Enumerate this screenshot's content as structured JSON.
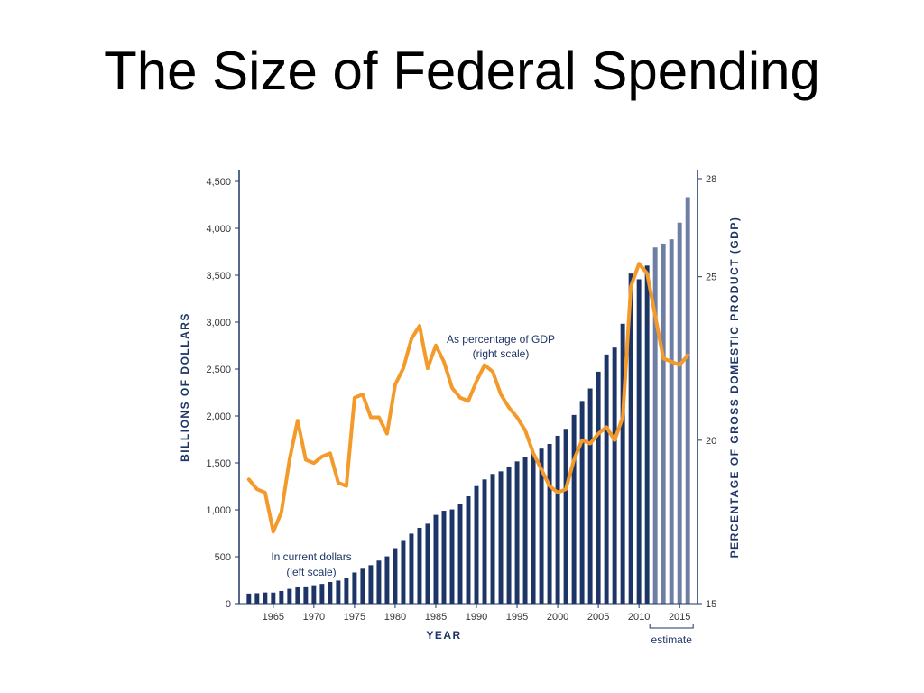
{
  "slide": {
    "title": "The Size of Federal Spending"
  },
  "colors": {
    "bar_actual": "#1d3566",
    "bar_estimate": "#6f7ea5",
    "line": "#f39a2b",
    "axis": "#1d3566"
  },
  "chart_data": {
    "type": "bar",
    "title": "",
    "xlabel": "YEAR",
    "ylabel": "BILLIONS OF DOLLARS",
    "ylabel_right": "PERCENTAGE OF GROSS DOMESTIC PRODUCT (GDP)",
    "ylim": [
      0,
      4500
    ],
    "ylim_right": [
      15,
      28
    ],
    "x_ticks": [
      1965,
      1970,
      1975,
      1980,
      1985,
      1990,
      1995,
      2000,
      2005,
      2010,
      2015
    ],
    "y_ticks_left": [
      "0",
      "500",
      "1,000",
      "1,500",
      "2,000",
      "2,500",
      "3,000",
      "3,500",
      "4,000",
      "4,500"
    ],
    "y_ticks_right": [
      "15",
      "20",
      "25",
      "28"
    ],
    "grid": false,
    "estimate_range": [
      2012,
      2016
    ],
    "estimate_label": "estimate",
    "annotations": {
      "bars_line1": "In current dollars",
      "bars_line2": "(left scale)",
      "line_line1": "As percentage of GDP",
      "line_line2": "(right scale)"
    },
    "series": [
      {
        "name": "In current dollars",
        "axis": "left",
        "x": [
          1962,
          1963,
          1964,
          1965,
          1966,
          1967,
          1968,
          1969,
          1970,
          1971,
          1972,
          1973,
          1974,
          1975,
          1976,
          1977,
          1978,
          1979,
          1980,
          1981,
          1982,
          1983,
          1984,
          1985,
          1986,
          1987,
          1988,
          1989,
          1990,
          1991,
          1992,
          1993,
          1994,
          1995,
          1996,
          1997,
          1998,
          1999,
          2000,
          2001,
          2002,
          2003,
          2004,
          2005,
          2006,
          2007,
          2008,
          2009,
          2010,
          2011,
          2012,
          2013,
          2014,
          2015,
          2016
        ],
        "values": [
          107,
          111,
          119,
          118,
          135,
          158,
          178,
          184,
          196,
          210,
          231,
          246,
          269,
          332,
          372,
          410,
          459,
          504,
          591,
          678,
          746,
          808,
          852,
          946,
          990,
          1004,
          1065,
          1144,
          1253,
          1324,
          1382,
          1410,
          1462,
          1516,
          1561,
          1601,
          1652,
          1702,
          1789,
          1863,
          2011,
          2160,
          2293,
          2472,
          2655,
          2729,
          2983,
          3518,
          3457,
          3603,
          3796,
          3837,
          3883,
          4060,
          4332
        ]
      },
      {
        "name": "As percentage of GDP",
        "axis": "right",
        "x": [
          1962,
          1963,
          1964,
          1965,
          1966,
          1967,
          1968,
          1969,
          1970,
          1971,
          1972,
          1973,
          1974,
          1975,
          1976,
          1977,
          1978,
          1979,
          1980,
          1981,
          1982,
          1983,
          1984,
          1985,
          1986,
          1987,
          1988,
          1989,
          1990,
          1991,
          1992,
          1993,
          1994,
          1995,
          1996,
          1997,
          1998,
          1999,
          2000,
          2001,
          2002,
          2003,
          2004,
          2005,
          2006,
          2007,
          2008,
          2009,
          2010,
          2011,
          2012,
          2013,
          2014,
          2015,
          2016
        ],
        "values": [
          18.8,
          18.5,
          18.4,
          17.2,
          17.8,
          19.4,
          20.6,
          19.4,
          19.3,
          19.5,
          19.6,
          18.7,
          18.6,
          21.3,
          21.4,
          20.7,
          20.7,
          20.2,
          21.7,
          22.2,
          23.1,
          23.5,
          22.2,
          22.9,
          22.4,
          21.6,
          21.3,
          21.2,
          21.8,
          22.3,
          22.1,
          21.4,
          21.0,
          20.7,
          20.3,
          19.6,
          19.1,
          18.6,
          18.4,
          18.5,
          19.4,
          20.0,
          19.9,
          20.2,
          20.4,
          20.0,
          20.7,
          24.7,
          25.4,
          25.1,
          23.8,
          22.5,
          22.4,
          22.3,
          22.6
        ]
      }
    ]
  }
}
